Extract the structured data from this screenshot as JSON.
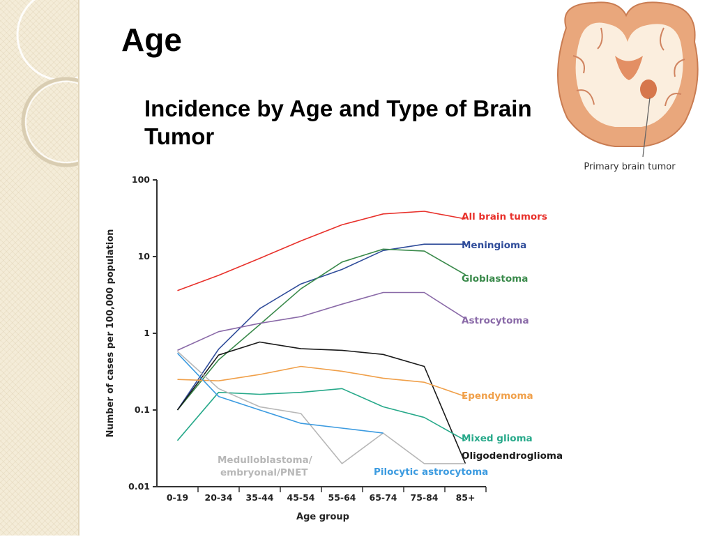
{
  "slide": {
    "title": "Age",
    "subtitle": "Incidence by Age and Type of Brain Tumor",
    "image_caption": "Primary brain tumor"
  },
  "colors": {
    "strip": "#f4ecd8",
    "brain": "#e9a77c",
    "brain_white": "#fbeede"
  },
  "chart_data": {
    "type": "line",
    "title": "",
    "xlabel": "Age group",
    "ylabel": "Number of cases per 100,000 population",
    "yscale": "log",
    "ylim": [
      0.01,
      100
    ],
    "yticks": [
      {
        "v": 100,
        "label": "100"
      },
      {
        "v": 10,
        "label": "10"
      },
      {
        "v": 1,
        "label": "1"
      },
      {
        "v": 0.1,
        "label": "0.1"
      },
      {
        "v": 0.01,
        "label": "0.01"
      }
    ],
    "categories": [
      "0-19",
      "20-34",
      "35-44",
      "45-54",
      "55-64",
      "65-74",
      "75-84",
      "85+"
    ],
    "grid": false,
    "legend": "labels at line ends",
    "series": [
      {
        "name": "All brain tumors",
        "color": "#e8312b",
        "values": [
          3.6,
          5.7,
          9.5,
          16,
          26,
          36,
          39,
          31
        ]
      },
      {
        "name": "Meningioma",
        "color": "#2f4c9a",
        "values": [
          0.1,
          0.62,
          2.1,
          4.4,
          6.8,
          12,
          14.5,
          14.5
        ]
      },
      {
        "name": "Globlastoma",
        "color": "#3a8a4b",
        "values": [
          0.1,
          0.45,
          1.3,
          3.8,
          8.5,
          12.5,
          11.8,
          5.8
        ]
      },
      {
        "name": "Astrocytoma",
        "color": "#8a6aa8",
        "values": [
          0.6,
          1.05,
          1.35,
          1.65,
          2.4,
          3.4,
          3.4,
          1.55
        ]
      },
      {
        "name": "Oligodendroglioma",
        "color": "#1a1a1a",
        "values": [
          0.1,
          0.52,
          0.77,
          0.63,
          0.6,
          0.53,
          0.37,
          0.02
        ]
      },
      {
        "name": "Ependymoma",
        "color": "#f0a04a",
        "values": [
          0.25,
          0.24,
          0.29,
          0.37,
          0.32,
          0.26,
          0.23,
          0.15
        ]
      },
      {
        "name": "Mixed glioma",
        "color": "#27a98a",
        "values": [
          0.04,
          0.17,
          0.16,
          0.17,
          0.19,
          0.11,
          0.08,
          0.04
        ]
      },
      {
        "name": "Medulloblastoma/ embryonal/PNET",
        "color": "#b7b7b7",
        "values": [
          0.58,
          0.19,
          0.11,
          0.09,
          0.02,
          0.05,
          0.02,
          0.02
        ]
      },
      {
        "name": "Pilocytic astrocytoma",
        "color": "#3c9be0",
        "values": [
          0.55,
          0.15,
          0.1,
          0.067,
          0.058,
          0.05,
          null,
          null
        ]
      }
    ]
  }
}
